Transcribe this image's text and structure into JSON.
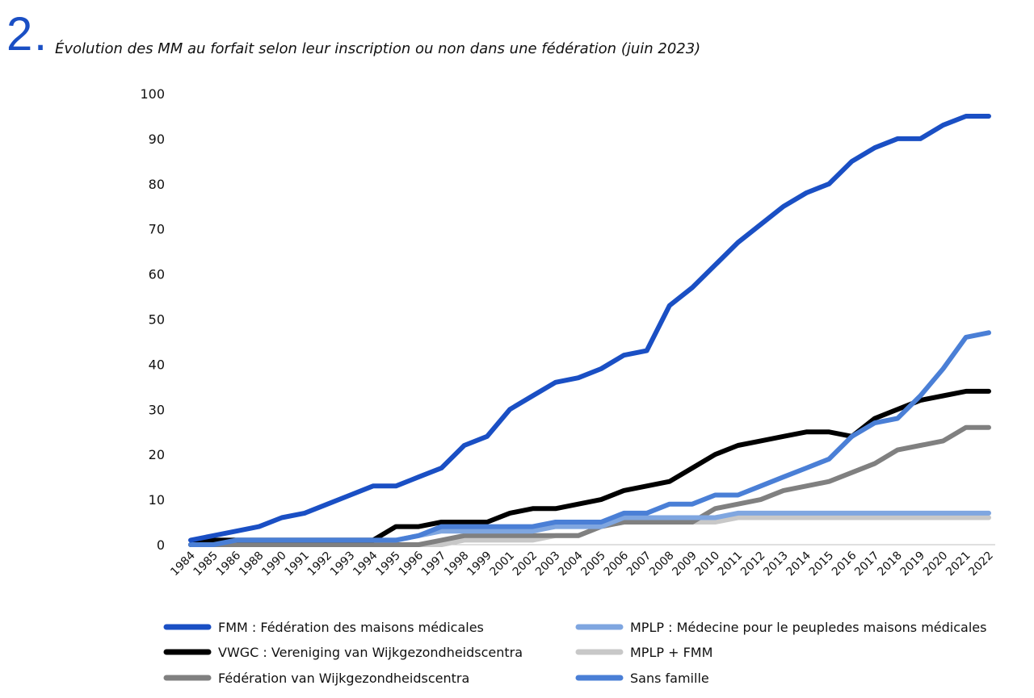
{
  "header": {
    "number": "2.",
    "title": "Évolution des MM au forfait selon leur inscription ou non dans une fédération (juin 2023)"
  },
  "chart_data": {
    "type": "line",
    "title": "Évolution des MM au forfait selon leur inscription ou non dans une fédération (juin 2023)",
    "xlabel": "",
    "ylabel": "",
    "ylim": [
      0,
      100
    ],
    "yticks": [
      0,
      10,
      20,
      30,
      40,
      50,
      60,
      70,
      80,
      90,
      100
    ],
    "grid": false,
    "legend_position": "bottom",
    "x": [
      "1984",
      "1985",
      "1986",
      "1988",
      "1990",
      "1991",
      "1992",
      "1993",
      "1994",
      "1995",
      "1996",
      "1997",
      "1998",
      "1999",
      "2001",
      "2002",
      "2003",
      "2004",
      "2005",
      "2006",
      "2007",
      "2008",
      "2009",
      "2010",
      "2011",
      "2012",
      "2013",
      "2014",
      "2015",
      "2016",
      "2017",
      "2018",
      "2019",
      "2020",
      "2021",
      "2022"
    ],
    "series": [
      {
        "name": "FMM : Fédération des maisons médicales",
        "color": "#1a4fc4",
        "values": [
          1,
          2,
          3,
          4,
          6,
          7,
          9,
          11,
          13,
          13,
          15,
          17,
          22,
          24,
          30,
          33,
          36,
          37,
          39,
          42,
          43,
          53,
          57,
          62,
          67,
          71,
          75,
          78,
          80,
          85,
          88,
          90,
          90,
          93,
          95,
          95
        ]
      },
      {
        "name": "MPLP : Médecine pour le peupledes maisons médicales",
        "color": "#7fa6e0",
        "values": [
          0,
          1,
          1,
          1,
          1,
          1,
          1,
          1,
          1,
          1,
          2,
          3,
          3,
          3,
          3,
          3,
          4,
          4,
          4,
          6,
          6,
          6,
          6,
          6,
          7,
          7,
          7,
          7,
          7,
          7,
          7,
          7,
          7,
          7,
          7,
          7
        ]
      },
      {
        "name": "VWGC : Vereniging van Wijkgezondheidscentra",
        "color": "#000000",
        "values": [
          0,
          1,
          1,
          1,
          1,
          1,
          1,
          1,
          1,
          4,
          4,
          5,
          5,
          5,
          7,
          8,
          8,
          9,
          10,
          12,
          13,
          14,
          17,
          20,
          22,
          23,
          24,
          25,
          25,
          24,
          28,
          30,
          32,
          33,
          34,
          34
        ]
      },
      {
        "name": "MPLP + FMM",
        "color": "#c8c8c8",
        "values": [
          0,
          0,
          0,
          0,
          0,
          0,
          0,
          0,
          0,
          0,
          0,
          0,
          1,
          1,
          1,
          1,
          2,
          2,
          4,
          5,
          5,
          5,
          5,
          5,
          6,
          6,
          6,
          6,
          6,
          6,
          6,
          6,
          6,
          6,
          6,
          6
        ]
      },
      {
        "name": "Fédération van Wijkgezondheidscentra",
        "color": "#808080",
        "values": [
          0,
          0,
          0,
          0,
          0,
          0,
          0,
          0,
          0,
          0,
          0,
          1,
          2,
          2,
          2,
          2,
          2,
          2,
          4,
          5,
          5,
          5,
          5,
          8,
          9,
          10,
          12,
          13,
          14,
          16,
          18,
          21,
          22,
          23,
          26,
          26
        ]
      },
      {
        "name": "Sans famille",
        "color": "#4a7fd6",
        "values": [
          0,
          0,
          1,
          1,
          1,
          1,
          1,
          1,
          1,
          1,
          2,
          4,
          4,
          4,
          4,
          4,
          5,
          5,
          5,
          7,
          7,
          9,
          9,
          11,
          11,
          13,
          15,
          17,
          19,
          24,
          27,
          28,
          33,
          39,
          46,
          47
        ]
      }
    ]
  }
}
